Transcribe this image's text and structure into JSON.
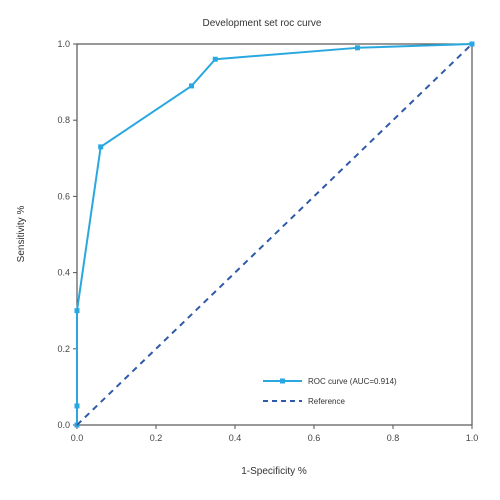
{
  "chart_data": {
    "type": "line",
    "title": "Development set roc curve",
    "xlabel": "1-Specificity %",
    "ylabel": "Sensitivity %",
    "xlim": [
      0,
      1
    ],
    "ylim": [
      0,
      1
    ],
    "x_ticks": [
      "0.0",
      "0.2",
      "0.4",
      "0.6",
      "0.8",
      "1.0"
    ],
    "y_ticks": [
      "0.0",
      "0.2",
      "0.4",
      "0.6",
      "0.8",
      "1.0"
    ],
    "grid": false,
    "legend_position": "bottom-right",
    "series": [
      {
        "name": "ROC curve (AUC=0.914)",
        "color": "#29a8e0",
        "style": "solid",
        "marker": "square",
        "points": [
          {
            "x": 0.0,
            "y": 0.0
          },
          {
            "x": 0.0,
            "y": 0.05
          },
          {
            "x": 0.0,
            "y": 0.3
          },
          {
            "x": 0.06,
            "y": 0.73
          },
          {
            "x": 0.29,
            "y": 0.89
          },
          {
            "x": 0.35,
            "y": 0.96
          },
          {
            "x": 0.71,
            "y": 0.99
          },
          {
            "x": 1.0,
            "y": 1.0
          }
        ]
      },
      {
        "name": "Reference",
        "color": "#2f5aa8",
        "style": "dashed",
        "marker": "none",
        "points": [
          {
            "x": 0.0,
            "y": 0.0
          },
          {
            "x": 1.0,
            "y": 1.0
          }
        ]
      }
    ]
  }
}
